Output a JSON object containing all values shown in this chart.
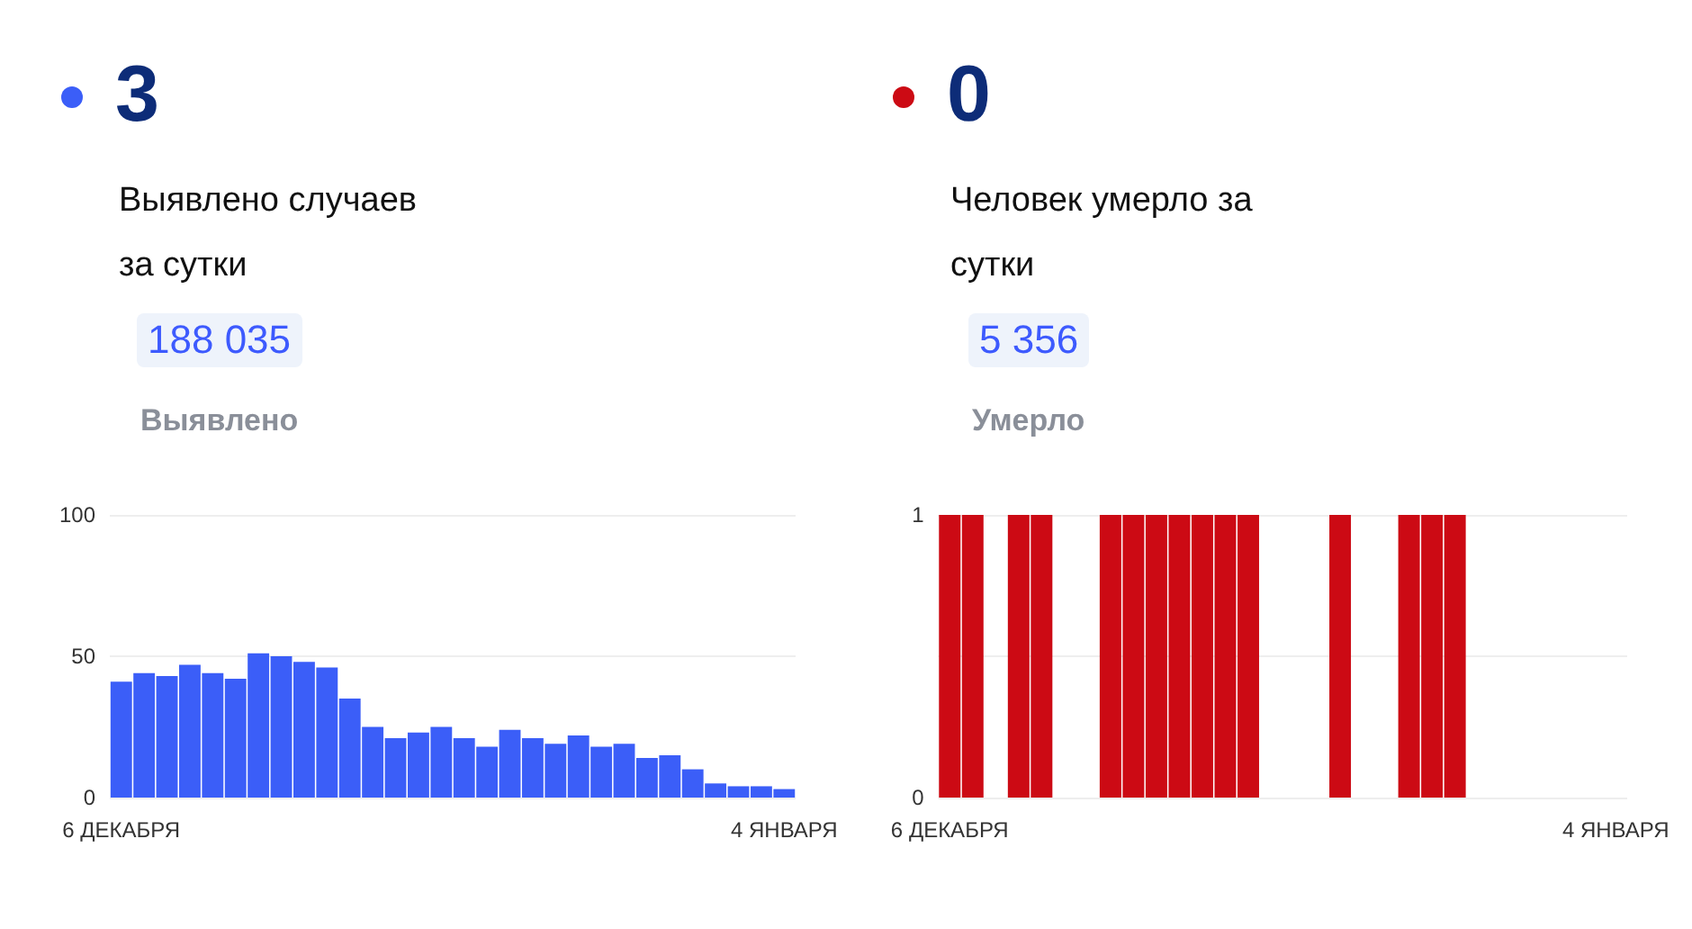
{
  "chart_data": [
    {
      "type": "bar",
      "title": "3",
      "subtitle": "Выявлено случаев за сутки",
      "annotations": [
        "188 035",
        "Выявлено"
      ],
      "categories": [
        "6 ДЕКАБРЯ",
        null,
        null,
        null,
        null,
        null,
        null,
        null,
        null,
        null,
        null,
        null,
        null,
        null,
        null,
        null,
        null,
        null,
        null,
        null,
        null,
        null,
        null,
        null,
        null,
        null,
        null,
        null,
        null,
        "4 ЯНВАРЯ"
      ],
      "series": [
        {
          "color": "#3b5ef8",
          "values": [
            41,
            44,
            43,
            47,
            44,
            42,
            51,
            50,
            48,
            46,
            35,
            25,
            21,
            23,
            25,
            21,
            18,
            24,
            21,
            19,
            22,
            18,
            19,
            14,
            15,
            10,
            5,
            4,
            4,
            3
          ]
        }
      ],
      "ylim": [
        0,
        100
      ],
      "yticks": [
        0,
        50,
        100
      ],
      "grid": "y"
    },
    {
      "type": "bar",
      "title": "0",
      "subtitle": "Человек умерло за сутки",
      "annotations": [
        "5 356",
        "Умерло"
      ],
      "categories": [
        "6 ДЕКАБРЯ",
        null,
        null,
        null,
        null,
        null,
        null,
        null,
        null,
        null,
        null,
        null,
        null,
        null,
        null,
        null,
        null,
        null,
        null,
        null,
        null,
        null,
        null,
        null,
        null,
        null,
        null,
        null,
        null,
        "4 ЯНВАРЯ"
      ],
      "series": [
        {
          "color": "#cc0a14",
          "values": [
            1,
            1,
            0,
            1,
            1,
            0,
            0,
            1,
            1,
            1,
            1,
            1,
            1,
            1,
            0,
            0,
            0,
            1,
            0,
            0,
            1,
            1,
            1,
            0,
            0,
            0,
            0,
            0,
            0,
            0
          ]
        }
      ],
      "ylim": [
        0,
        1
      ],
      "yticks": [
        0,
        {
          "value": 0.5,
          "label": null
        },
        1
      ],
      "grid": "y"
    }
  ]
}
